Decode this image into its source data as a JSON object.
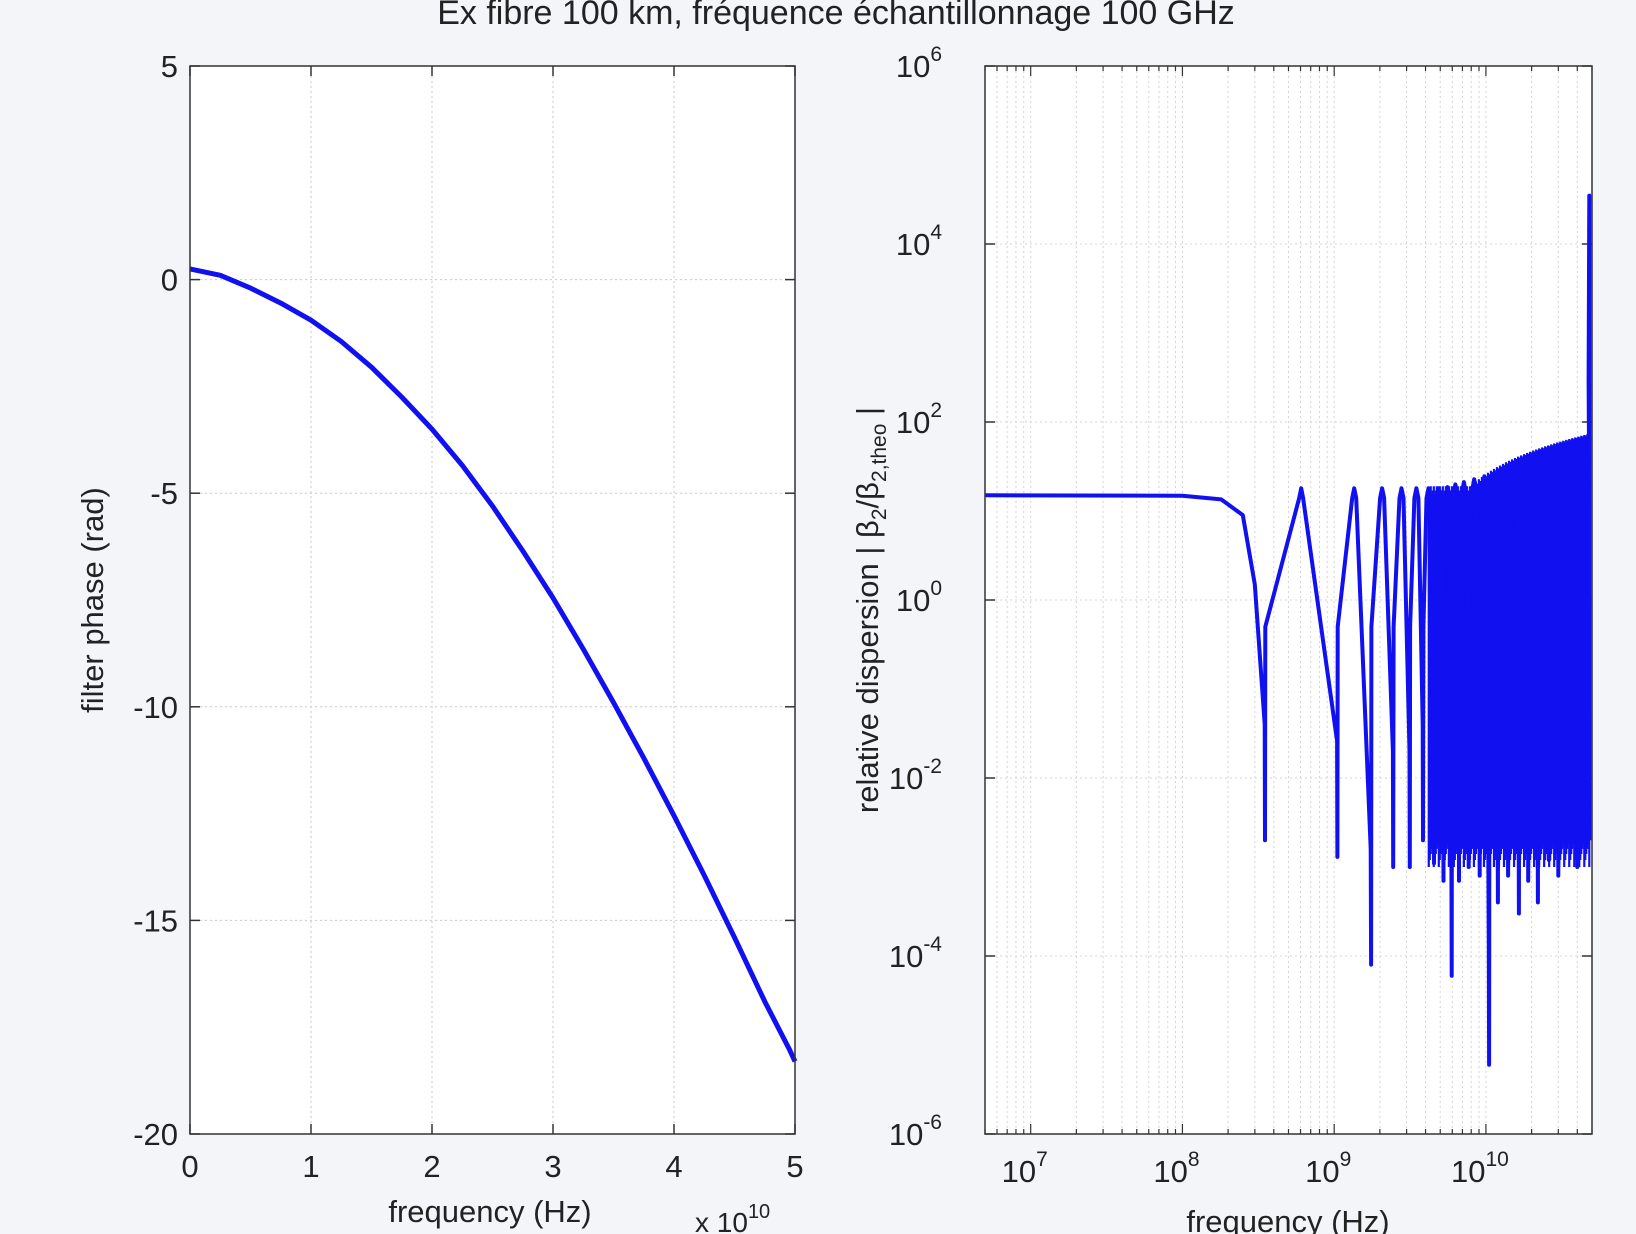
{
  "figure": {
    "title": "Ex fibre 100 km, fréquence échantillonnage 100 GHz"
  },
  "chart_data": [
    {
      "type": "line",
      "xlabel": "frequency (Hz)",
      "ylabel": "filter phase (rad)",
      "x_multiplier_label": "x 10",
      "x_multiplier_exp": "10",
      "xlim": [
        0,
        5
      ],
      "ylim": [
        -20,
        5
      ],
      "xticks": [
        0,
        1,
        2,
        3,
        4,
        5
      ],
      "xtick_labels": [
        "0",
        "1",
        "2",
        "3",
        "4",
        "5"
      ],
      "yticks": [
        5,
        0,
        -5,
        -10,
        -15,
        -20
      ],
      "ytick_labels": [
        "5",
        "0",
        "-5",
        "-10",
        "-15",
        "-20"
      ],
      "grid": true,
      "line_color": "#1010f0",
      "series": [
        {
          "x": [
            0,
            0.25,
            0.5,
            0.75,
            1.0,
            1.25,
            1.5,
            1.75,
            2.0,
            2.25,
            2.5,
            2.75,
            3.0,
            3.25,
            3.5,
            3.75,
            4.0,
            4.25,
            4.5,
            4.75,
            4.85,
            4.95,
            5.0
          ],
          "y": [
            0.25,
            0.1,
            -0.2,
            -0.55,
            -0.95,
            -1.45,
            -2.05,
            -2.75,
            -3.5,
            -4.35,
            -5.3,
            -6.35,
            -7.45,
            -8.65,
            -9.9,
            -11.2,
            -12.55,
            -13.95,
            -15.4,
            -16.9,
            -17.45,
            -18.0,
            -18.3
          ]
        }
      ]
    },
    {
      "type": "line",
      "xlabel": "frequency (Hz)",
      "ylabel_main": "relative dispersion | β",
      "ylabel_sub1": "2",
      "ylabel_mid": "/β",
      "ylabel_sub2": "2,theo",
      "ylabel_end": " |",
      "x_scale": "log",
      "y_scale": "log",
      "xlim": [
        5000000,
        50000000000
      ],
      "ylim": [
        1e-06,
        1000000
      ],
      "xtick_base": "10",
      "xtick_exps": [
        "7",
        "8",
        "9",
        "10"
      ],
      "ytick_base": "10",
      "ytick_exps": [
        "6",
        "4",
        "2",
        "0",
        "-2",
        "-4",
        "-6"
      ],
      "grid": true,
      "line_color": "#1010f0",
      "plateau_value": 15,
      "dips": [
        {
          "x": 350000000,
          "y": 0.002
        },
        {
          "x": 1050000000,
          "y": 0.0013
        },
        {
          "x": 1750000000,
          "y": 8e-05
        },
        {
          "x": 2450000000,
          "y": 0.001
        },
        {
          "x": 3150000000,
          "y": 0.001
        },
        {
          "x": 3850000000,
          "y": 0.002
        },
        {
          "x": 4550000000,
          "y": 0.0011
        },
        {
          "x": 5250000000,
          "y": 0.0007
        },
        {
          "x": 5950000000,
          "y": 6e-05
        },
        {
          "x": 6650000000,
          "y": 0.0007
        },
        {
          "x": 7700000000,
          "y": 0.001
        },
        {
          "x": 9100000000,
          "y": 0.0008
        },
        {
          "x": 10500000000,
          "y": 6e-06
        },
        {
          "x": 12000000000,
          "y": 0.0004
        },
        {
          "x": 14000000000,
          "y": 0.0008
        },
        {
          "x": 16500000000,
          "y": 0.0003
        },
        {
          "x": 19000000000,
          "y": 0.0007
        },
        {
          "x": 22000000000,
          "y": 0.0004
        },
        {
          "x": 26000000000,
          "y": 0.0012
        },
        {
          "x": 30000000000,
          "y": 0.0008
        },
        {
          "x": 35000000000,
          "y": 0.002
        },
        {
          "x": 40000000000,
          "y": 0.001
        },
        {
          "x": 45000000000,
          "y": 0.002
        }
      ],
      "final_peak": {
        "x": 48000000000,
        "y": 35000
      }
    }
  ]
}
